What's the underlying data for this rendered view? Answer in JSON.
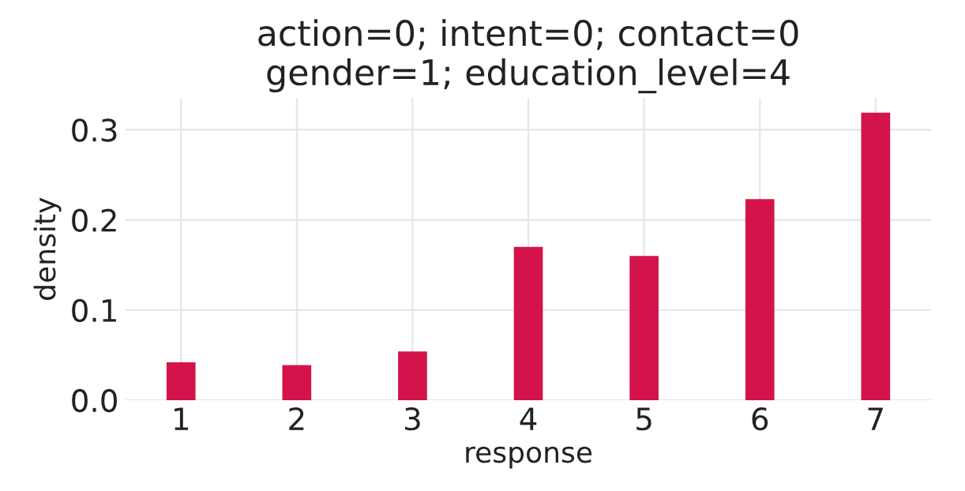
{
  "chart_data": {
    "type": "bar",
    "title": "action=0; intent=0; contact=0\ngender=1; education_level=4",
    "xlabel": "response",
    "ylabel": "density",
    "categories": [
      "1",
      "2",
      "3",
      "4",
      "5",
      "6",
      "7"
    ],
    "values": [
      0.042,
      0.039,
      0.054,
      0.17,
      0.16,
      0.223,
      0.319
    ],
    "color": "#d31349",
    "ylim": [
      0,
      0.335
    ],
    "yticks": [
      {
        "value": 0,
        "label": "0.0"
      },
      0.1,
      0.2,
      0.3
    ],
    "grid": true
  }
}
